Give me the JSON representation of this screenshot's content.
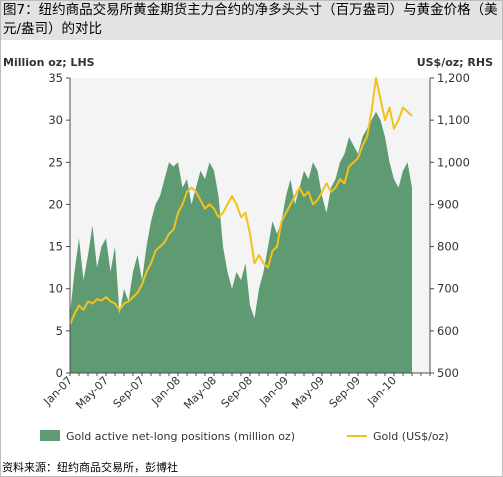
{
  "title": "图7：纽约商品交易所黄金期货主力合约的净多头头寸（百万盎司）与黄金价格（美元/盎司）的对比",
  "source": "资料来源：纽约商品交易所，彭博社",
  "colors": {
    "area": "#5e9b72",
    "line": "#f2c21b",
    "plot_bg": "#f4f4f4",
    "axis": "#4d4d4d",
    "title_bg": "#e3e3e3"
  },
  "chart_data": {
    "type": "area",
    "left_axis_label": "Million oz; LHS",
    "right_axis_label": "US$/oz; RHS",
    "ylim_left": [
      0,
      35
    ],
    "ylim_right": [
      500,
      1200
    ],
    "yticks_left": [
      "0",
      "5",
      "10",
      "15",
      "20",
      "25",
      "30",
      "35"
    ],
    "yticks_right": [
      "500",
      "600",
      "700",
      "800",
      "900",
      "1,000",
      "1,100",
      "1,200"
    ],
    "xtick_labels": [
      "Jan-07",
      "May-07",
      "Sep-07",
      "Jan-08",
      "May-08",
      "Sep-08",
      "Jan-09",
      "May-09",
      "Sep-09",
      "Jan-10"
    ],
    "xtick_index": [
      0,
      4,
      8,
      12,
      16,
      20,
      24,
      28,
      32,
      36
    ],
    "x_count": 40,
    "grid": false,
    "legend_position": "bottom",
    "series": [
      {
        "name": "Gold active net-long positions (million oz)",
        "axis": "left",
        "render": "area",
        "color": "#5e9b72",
        "points": [
          [
            0,
            7
          ],
          [
            0.5,
            12
          ],
          [
            1,
            16
          ],
          [
            1.5,
            11
          ],
          [
            2,
            14
          ],
          [
            2.5,
            17.5
          ],
          [
            3,
            12.5
          ],
          [
            3.5,
            15
          ],
          [
            4,
            16
          ],
          [
            4.5,
            12
          ],
          [
            5,
            15
          ],
          [
            5.5,
            7
          ],
          [
            6,
            10
          ],
          [
            6.5,
            8.5
          ],
          [
            7,
            12
          ],
          [
            7.5,
            14
          ],
          [
            8,
            11
          ],
          [
            8.5,
            15
          ],
          [
            9,
            18
          ],
          [
            9.5,
            20
          ],
          [
            10,
            21
          ],
          [
            10.5,
            23
          ],
          [
            11,
            25
          ],
          [
            11.5,
            24.5
          ],
          [
            12,
            25
          ],
          [
            12.5,
            22
          ],
          [
            13,
            23
          ],
          [
            13.5,
            20
          ],
          [
            14,
            22
          ],
          [
            14.5,
            24
          ],
          [
            15,
            23
          ],
          [
            15.5,
            25
          ],
          [
            16,
            24
          ],
          [
            16.5,
            21
          ],
          [
            17,
            15
          ],
          [
            17.5,
            12
          ],
          [
            18,
            10
          ],
          [
            18.5,
            12
          ],
          [
            19,
            11
          ],
          [
            19.5,
            13
          ],
          [
            20,
            8
          ],
          [
            20.5,
            6.5
          ],
          [
            21,
            10
          ],
          [
            21.5,
            12
          ],
          [
            22,
            15
          ],
          [
            22.5,
            18
          ],
          [
            23,
            16.5
          ],
          [
            23.5,
            18
          ],
          [
            24,
            21
          ],
          [
            24.5,
            23
          ],
          [
            25,
            20
          ],
          [
            25.5,
            22
          ],
          [
            26,
            24
          ],
          [
            26.5,
            23
          ],
          [
            27,
            25
          ],
          [
            27.5,
            24
          ],
          [
            28,
            21
          ],
          [
            28.5,
            19
          ],
          [
            29,
            22
          ],
          [
            29.5,
            23
          ],
          [
            30,
            25
          ],
          [
            30.5,
            26
          ],
          [
            31,
            28
          ],
          [
            31.5,
            27
          ],
          [
            32,
            26
          ],
          [
            32.5,
            28
          ],
          [
            33,
            29
          ],
          [
            33.5,
            30
          ],
          [
            34,
            31
          ],
          [
            34.5,
            30
          ],
          [
            35,
            28
          ],
          [
            35.5,
            25
          ],
          [
            36,
            23
          ],
          [
            36.5,
            22
          ],
          [
            37,
            24
          ],
          [
            37.5,
            25
          ],
          [
            38,
            22
          ]
        ]
      },
      {
        "name": "Gold (US$/oz)",
        "axis": "right",
        "render": "line",
        "color": "#f2c21b",
        "points": [
          [
            0,
            615
          ],
          [
            0.5,
            640
          ],
          [
            1,
            660
          ],
          [
            1.5,
            650
          ],
          [
            2,
            670
          ],
          [
            2.5,
            665
          ],
          [
            3,
            675
          ],
          [
            3.5,
            672
          ],
          [
            4,
            680
          ],
          [
            4.5,
            670
          ],
          [
            5,
            665
          ],
          [
            5.5,
            650
          ],
          [
            6,
            665
          ],
          [
            6.5,
            670
          ],
          [
            7,
            680
          ],
          [
            7.5,
            690
          ],
          [
            8,
            710
          ],
          [
            8.5,
            740
          ],
          [
            9,
            760
          ],
          [
            9.5,
            790
          ],
          [
            10,
            800
          ],
          [
            10.5,
            810
          ],
          [
            11,
            830
          ],
          [
            11.5,
            840
          ],
          [
            12,
            880
          ],
          [
            12.5,
            900
          ],
          [
            13,
            930
          ],
          [
            13.5,
            940
          ],
          [
            14,
            930
          ],
          [
            14.5,
            910
          ],
          [
            15,
            890
          ],
          [
            15.5,
            900
          ],
          [
            16,
            890
          ],
          [
            16.5,
            870
          ],
          [
            17,
            880
          ],
          [
            17.5,
            900
          ],
          [
            18,
            920
          ],
          [
            18.5,
            900
          ],
          [
            19,
            870
          ],
          [
            19.5,
            880
          ],
          [
            20,
            830
          ],
          [
            20.5,
            760
          ],
          [
            21,
            780
          ],
          [
            21.5,
            760
          ],
          [
            22,
            750
          ],
          [
            22.5,
            790
          ],
          [
            23,
            800
          ],
          [
            23.5,
            860
          ],
          [
            24,
            880
          ],
          [
            24.5,
            900
          ],
          [
            25,
            920
          ],
          [
            25.5,
            940
          ],
          [
            26,
            920
          ],
          [
            26.5,
            930
          ],
          [
            27,
            900
          ],
          [
            27.5,
            910
          ],
          [
            28,
            930
          ],
          [
            28.5,
            950
          ],
          [
            29,
            930
          ],
          [
            29.5,
            940
          ],
          [
            30,
            960
          ],
          [
            30.5,
            950
          ],
          [
            31,
            990
          ],
          [
            31.5,
            1000
          ],
          [
            32,
            1010
          ],
          [
            32.5,
            1040
          ],
          [
            33,
            1060
          ],
          [
            33.5,
            1120
          ],
          [
            34,
            1200
          ],
          [
            34.5,
            1150
          ],
          [
            35,
            1100
          ],
          [
            35.5,
            1130
          ],
          [
            36,
            1080
          ],
          [
            36.5,
            1100
          ],
          [
            37,
            1130
          ],
          [
            37.5,
            1120
          ],
          [
            38,
            1110
          ]
        ]
      }
    ]
  }
}
